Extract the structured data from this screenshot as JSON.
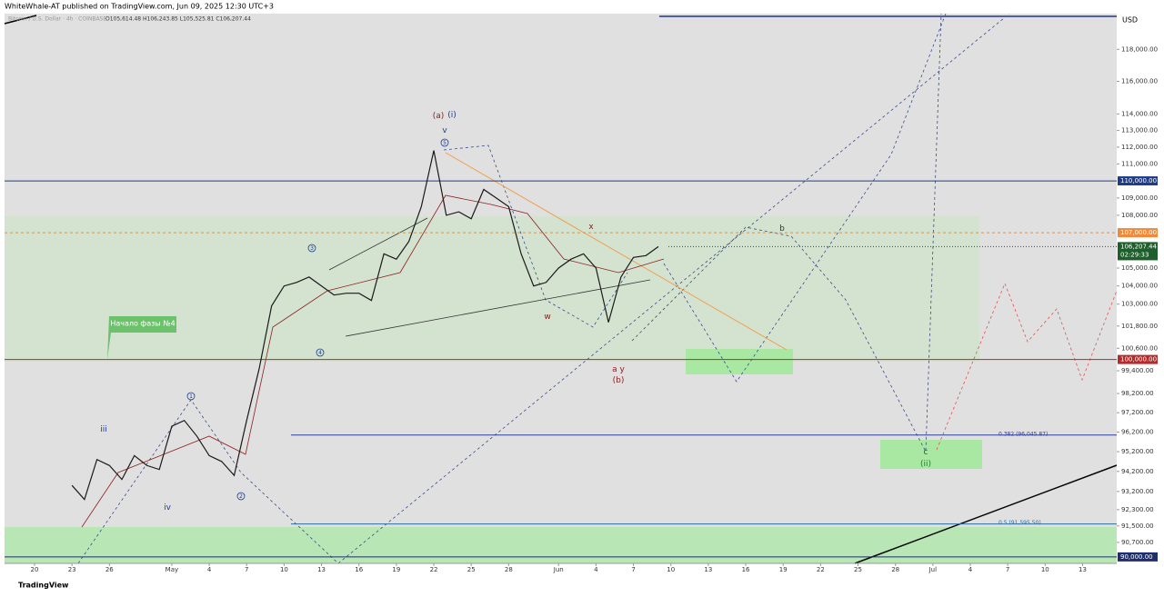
{
  "header": {
    "publisher": "WhiteWhale-AT published on TradingView.com, Jun 09, 2025 12:30 UTC+3",
    "symbol": "Bitcoin / U.S. Dollar · 4h · COINBASE",
    "ohlc": "O105,614.48 H106,243.85 L105,525.81 C106,207.44"
  },
  "footer": {
    "brand": "TradingView"
  },
  "chart_data": {
    "type": "line",
    "log_scale": true,
    "currency": "USD",
    "x": [
      "04-23",
      "04-24",
      "04-25",
      "04-26",
      "04-27",
      "04-28",
      "04-29",
      "04-30",
      "05-01",
      "05-02",
      "05-03",
      "05-04",
      "05-05",
      "05-06",
      "05-07",
      "05-08",
      "05-09",
      "05-10",
      "05-11",
      "05-12",
      "05-13",
      "05-14",
      "05-15",
      "05-16",
      "05-17",
      "05-18",
      "05-19",
      "05-20",
      "05-21",
      "05-22",
      "05-23",
      "05-24",
      "05-25",
      "05-26",
      "05-27",
      "05-28",
      "05-29",
      "05-30",
      "05-31",
      "06-01",
      "06-02",
      "06-03",
      "06-04",
      "06-05",
      "06-06",
      "06-07",
      "06-08",
      "06-09"
    ],
    "series": [
      {
        "name": "BTCUSD",
        "color": "#1a1a1a",
        "values": [
          93500,
          92800,
          94800,
          94500,
          93800,
          95000,
          94500,
          94300,
          96500,
          96800,
          96000,
          95000,
          94700,
          94000,
          96800,
          99500,
          102900,
          104000,
          104200,
          104500,
          104000,
          103500,
          103600,
          103600,
          103200,
          105800,
          105500,
          106500,
          108500,
          111800,
          108000,
          108200,
          107800,
          109500,
          109000,
          108500,
          105800,
          104000,
          104200,
          105000,
          105500,
          105800,
          105000,
          102000,
          104500,
          105600,
          105700,
          106207.44
        ]
      }
    ],
    "ylim": [
      89690,
      120270
    ],
    "yticks": [
      {
        "value": 118000,
        "label": "118,000.00"
      },
      {
        "value": 116000,
        "label": "116,000.00"
      },
      {
        "value": 114000,
        "label": "114,000.00"
      },
      {
        "value": 113000,
        "label": "113,000.00"
      },
      {
        "value": 112000,
        "label": "112,000.00"
      },
      {
        "value": 111000,
        "label": "111,000.00"
      },
      {
        "value": 109000,
        "label": "109,000.00"
      },
      {
        "value": 108000,
        "label": "108,000.00"
      },
      {
        "value": 105000,
        "label": "105,000.00"
      },
      {
        "value": 104000,
        "label": "104,000.00"
      },
      {
        "value": 103000,
        "label": "103,000.00"
      },
      {
        "value": 101800,
        "label": "101,800.00"
      },
      {
        "value": 100600,
        "label": "100,600.00"
      },
      {
        "value": 99400,
        "label": "99,400.00"
      },
      {
        "value": 98200,
        "label": "98,200.00"
      },
      {
        "value": 97200,
        "label": "97,200.00"
      },
      {
        "value": 96200,
        "label": "96,200.00"
      },
      {
        "value": 95200,
        "label": "95,200.00"
      },
      {
        "value": 94200,
        "label": "94,200.00"
      },
      {
        "value": 93200,
        "label": "93,200.00"
      },
      {
        "value": 92300,
        "label": "92,300.00"
      },
      {
        "value": 91500,
        "label": "91,500.00"
      },
      {
        "value": 90700,
        "label": "90,700.00"
      }
    ],
    "xticks": [
      {
        "value": "04-20",
        "label": "20"
      },
      {
        "value": "04-23",
        "label": "23"
      },
      {
        "value": "04-26",
        "label": "26"
      },
      {
        "value": "05-01",
        "label": "May"
      },
      {
        "value": "05-04",
        "label": "4"
      },
      {
        "value": "05-07",
        "label": "7"
      },
      {
        "value": "05-10",
        "label": "10"
      },
      {
        "value": "05-13",
        "label": "13"
      },
      {
        "value": "05-16",
        "label": "16"
      },
      {
        "value": "05-19",
        "label": "19"
      },
      {
        "value": "05-22",
        "label": "22"
      },
      {
        "value": "05-25",
        "label": "25"
      },
      {
        "value": "05-28",
        "label": "28"
      },
      {
        "value": "06-01",
        "label": "Jun"
      },
      {
        "value": "06-04",
        "label": "4"
      },
      {
        "value": "06-07",
        "label": "7"
      },
      {
        "value": "06-10",
        "label": "10"
      },
      {
        "value": "06-13",
        "label": "13"
      },
      {
        "value": "06-16",
        "label": "16"
      },
      {
        "value": "06-19",
        "label": "19"
      },
      {
        "value": "06-22",
        "label": "22"
      },
      {
        "value": "06-25",
        "label": "25"
      },
      {
        "value": "06-28",
        "label": "28"
      },
      {
        "value": "07-01",
        "label": "Jul"
      },
      {
        "value": "07-04",
        "label": "4"
      },
      {
        "value": "07-07",
        "label": "7"
      },
      {
        "value": "07-10",
        "label": "10"
      },
      {
        "value": "07-13",
        "label": "13"
      }
    ],
    "price_lines": [
      {
        "value": 110000,
        "label": "110,000.00",
        "color": "#1f3c88",
        "dashed": false
      },
      {
        "value": 107000,
        "label": "107,000.00",
        "color": "#f08a3a",
        "dashed": true
      },
      {
        "value": 100000,
        "label": "100,000.00",
        "color": "#b52a2a",
        "dashed": false
      },
      {
        "value": 90000,
        "label": "90,000.00",
        "color": "#1f2f6e",
        "dashed": false
      }
    ],
    "current_price": {
      "value": 106207.44,
      "label": "106,207.44",
      "countdown": "02:29:33",
      "color": "#1e5e2a"
    },
    "fib_levels": [
      {
        "value": 96045.87,
        "label": "0.382 (96,045.87)",
        "color": "#2c3e9a"
      },
      {
        "value": 91595.5,
        "label": "0.5 (91,595.50)",
        "color": "#2c6e9a"
      }
    ],
    "annotations": [
      {
        "text": "(a)",
        "color": "#8b1a1a",
        "circled": false
      },
      {
        "text": "(i)",
        "color": "#1f3c88",
        "circled": false
      },
      {
        "text": "v",
        "color": "#1f3c88",
        "circled": false
      },
      {
        "text": "5",
        "color": "#1f3c88",
        "circled": true
      },
      {
        "text": "3",
        "color": "#1f3c88",
        "circled": true
      },
      {
        "text": "4",
        "color": "#1f3c88",
        "circled": true
      },
      {
        "text": "1",
        "color": "#1f3c88",
        "circled": true
      },
      {
        "text": "2",
        "color": "#1f3c88",
        "circled": true
      },
      {
        "text": "iii",
        "color": "#1f3c88",
        "circled": false
      },
      {
        "text": "iv",
        "color": "#1f3c88",
        "circled": false
      },
      {
        "text": "x",
        "color": "#8b1a1a",
        "circled": false
      },
      {
        "text": "w",
        "color": "#8b1a1a",
        "circled": false
      },
      {
        "text": "a y",
        "color": "#8b1a1a",
        "circled": false
      },
      {
        "text": "(b)",
        "color": "#8b1a1a",
        "circled": false
      },
      {
        "text": "b",
        "color": "#333333",
        "circled": false
      },
      {
        "text": "c",
        "color": "#1e5e2a",
        "circled": false
      },
      {
        "text": "(ii)",
        "color": "#1e7e2a",
        "circled": false
      }
    ],
    "callout": "Начало фазы №4"
  }
}
